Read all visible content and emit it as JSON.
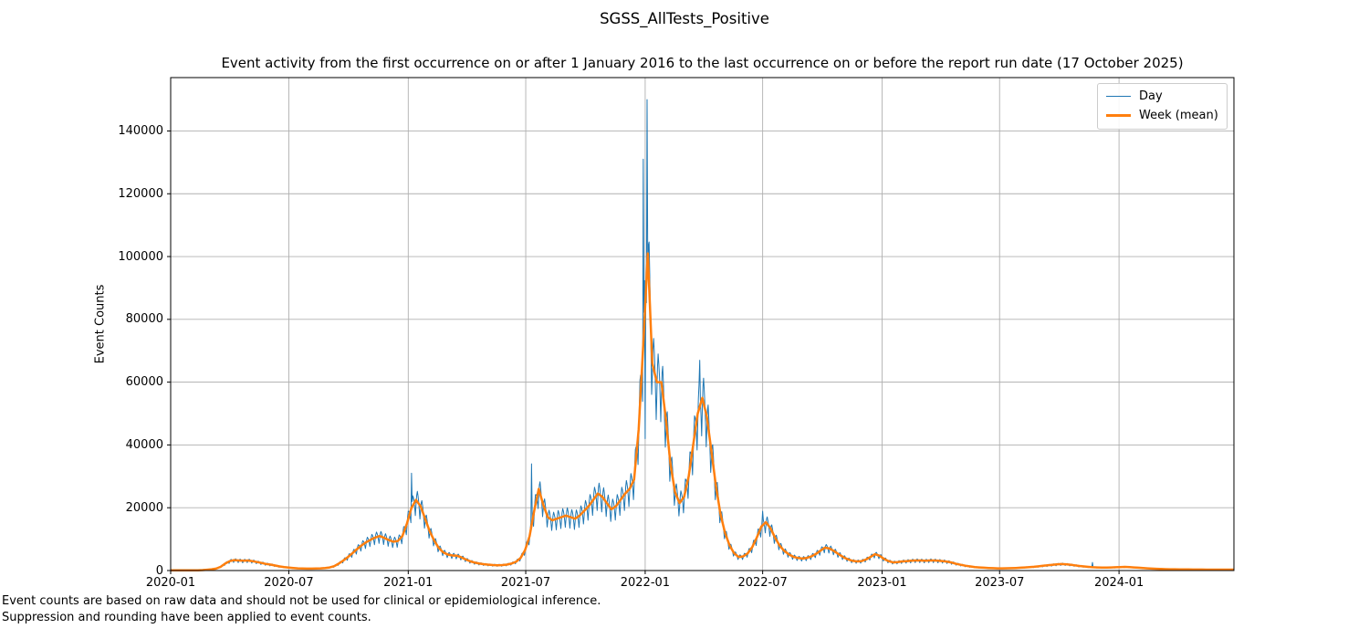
{
  "figure": {
    "title": "SGSS_AllTests_Positive",
    "footnotes": [
      "Event counts are based on raw data and should not be used for clinical or epidemiological inference.",
      "Suppression and rounding have been applied to event counts."
    ]
  },
  "chart_data": {
    "type": "line",
    "title": "Event activity from the first occurrence on or after 1 January 2016 to the last occurrence on or before the report run date (17 October 2025)",
    "xlabel": "",
    "ylabel": "Event Counts",
    "grid": true,
    "legend_position": "upper right",
    "ylim": [
      0,
      157000
    ],
    "y_ticks": [
      0,
      20000,
      40000,
      60000,
      80000,
      100000,
      120000,
      140000
    ],
    "x_start_date": "2020-01-01",
    "x_total_days": 1638,
    "x_ticks": [
      {
        "label": "2020-01",
        "day": 0
      },
      {
        "label": "2020-07",
        "day": 182
      },
      {
        "label": "2021-01",
        "day": 366
      },
      {
        "label": "2021-07",
        "day": 547
      },
      {
        "label": "2022-01",
        "day": 731
      },
      {
        "label": "2022-07",
        "day": 912
      },
      {
        "label": "2023-01",
        "day": 1096
      },
      {
        "label": "2023-07",
        "day": 1277
      },
      {
        "label": "2024-01",
        "day": 1461
      }
    ],
    "series": [
      {
        "name": "Day",
        "color": "#1f77b4",
        "line_width": 1,
        "derivation": "daily values oscillating around weekly mean with weekday reporting pattern; notable extremes listed in spike_overrides (key = days after 2020-01-01)",
        "weekday_factors": [
          0.93,
          1.08,
          1.15,
          1.1,
          1.03,
          0.92,
          0.79
        ],
        "spike_overrides": {
          "371": 31000,
          "556": 34000,
          "728": 131000,
          "731": 42000,
          "734": 150000,
          "815": 67000,
          "912": 18900,
          "1420": 2600
        }
      },
      {
        "name": "Week (mean)",
        "color": "#ff7f0e",
        "line_width": 2.5,
        "interval_days": 7,
        "values": [
          50,
          50,
          50,
          50,
          60,
          80,
          100,
          150,
          250,
          400,
          600,
          1200,
          2200,
          3000,
          3300,
          3200,
          3100,
          3200,
          3000,
          2700,
          2400,
          2100,
          1900,
          1600,
          1300,
          1100,
          950,
          800,
          700,
          650,
          600,
          600,
          650,
          700,
          800,
          1000,
          1400,
          2200,
          3200,
          4300,
          5500,
          6800,
          8000,
          9000,
          9800,
          10500,
          11000,
          10400,
          9700,
          9200,
          9400,
          11000,
          15000,
          20000,
          22500,
          20500,
          16500,
          12500,
          9500,
          7200,
          5800,
          5100,
          4800,
          4700,
          4200,
          3500,
          2900,
          2500,
          2200,
          2000,
          1850,
          1750,
          1700,
          1750,
          1900,
          2200,
          2800,
          4000,
          6500,
          11000,
          19000,
          26000,
          21000,
          17000,
          16000,
          16500,
          17000,
          17500,
          17000,
          16500,
          17500,
          19000,
          20500,
          22500,
          24500,
          23500,
          21500,
          19500,
          20500,
          22500,
          24500,
          26000,
          29000,
          45000,
          72000,
          101000,
          66000,
          60000,
          60000,
          48000,
          34000,
          25000,
          21500,
          23500,
          30000,
          40000,
          50000,
          55000,
          49000,
          38000,
          27000,
          18000,
          12000,
          8000,
          5500,
          4300,
          4500,
          5500,
          7500,
          10500,
          14000,
          15400,
          13500,
          10500,
          8000,
          6300,
          5200,
          4400,
          4000,
          3800,
          4000,
          4500,
          5300,
          6300,
          7300,
          7000,
          6200,
          5200,
          4300,
          3600,
          3100,
          2900,
          3000,
          3500,
          4300,
          5200,
          4700,
          3700,
          3000,
          2600,
          2700,
          2900,
          3000,
          3100,
          3200,
          3200,
          3100,
          3200,
          3200,
          3100,
          3000,
          2800,
          2500,
          2100,
          1800,
          1500,
          1300,
          1100,
          1000,
          900,
          800,
          750,
          700,
          700,
          720,
          750,
          800,
          900,
          1000,
          1100,
          1200,
          1350,
          1500,
          1650,
          1800,
          1950,
          2050,
          2000,
          1850,
          1650,
          1450,
          1300,
          1150,
          1050,
          1000,
          950,
          950,
          1000,
          1050,
          1100,
          1150,
          1100,
          1000,
          900,
          800,
          700,
          620,
          550,
          500,
          450,
          420,
          400,
          380,
          360,
          340,
          330,
          320,
          310,
          300,
          300,
          300,
          300,
          300,
          300,
          300
        ]
      }
    ],
    "annotations": {
      "day_peak": 150000,
      "week_mean_peak": 101000,
      "day_peak_date_approx": "2022-01-04"
    }
  },
  "style": {
    "grid_color": "#b0b0b0",
    "spine_color": "#000000",
    "background": "#ffffff",
    "legend_border": "#cccccc"
  }
}
